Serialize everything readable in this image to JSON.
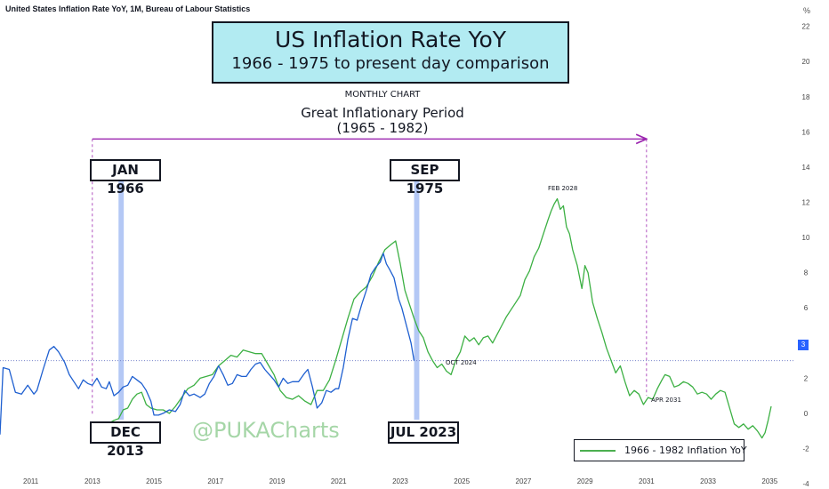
{
  "header": "United States Inflation Rate YoY, 1M, Bureau of Labour Statistics",
  "unit": "%",
  "title_box": {
    "line1": "US Inflation Rate YoY",
    "line2": "1966 - 1975 to present day comparison"
  },
  "monthly_label": "MONTHLY CHART",
  "period_label": {
    "line1": "Great Inflationary Period",
    "line2": "(1965 - 1982)"
  },
  "labels": {
    "jan1966": "JAN 1966",
    "sep1975": "SEP 1975",
    "dec2013": "DEC 2013",
    "jul2023": "JUL 2023",
    "feb2028": "FEB 2028",
    "oct2024": "OCT 2024",
    "apr2031": "APR 2031"
  },
  "watermark": "@PUKACharts",
  "current_value": "3",
  "colors": {
    "us_cpi": "#1e5fd0",
    "historic": "#3cb043",
    "highlight": "#b4c8f5",
    "arrow": "#9c27b0",
    "ref_line": "#7986cb",
    "title_bg": "#b2ebf2"
  },
  "chart_data": {
    "type": "line",
    "xlim": [
      2010.0,
      2035.8
    ],
    "ylim": [
      -4.3,
      23.5
    ],
    "x_ticks": [
      2011,
      2013,
      2015,
      2017,
      2019,
      2021,
      2023,
      2025,
      2027,
      2029,
      2031,
      2033,
      2035
    ],
    "y_ticks": [
      -4,
      -2,
      0,
      2,
      4,
      6,
      8,
      10,
      12,
      14,
      16,
      18,
      20,
      22
    ],
    "reference_line": 3,
    "highlights": [
      [
        2013.85,
        2014.02
      ],
      [
        2023.45,
        2023.62
      ]
    ],
    "period_arrow": {
      "from": 2013.0,
      "to": 2031.0,
      "y": 15.6
    },
    "series": [
      {
        "name": "United States Inflation Rate YoY",
        "points": [
          [
            2010.0,
            -1.2
          ],
          [
            2010.1,
            2.6
          ],
          [
            2010.3,
            2.5
          ],
          [
            2010.5,
            1.2
          ],
          [
            2010.7,
            1.1
          ],
          [
            2010.9,
            1.6
          ],
          [
            2011.1,
            1.1
          ],
          [
            2011.2,
            1.3
          ],
          [
            2011.4,
            2.5
          ],
          [
            2011.6,
            3.6
          ],
          [
            2011.75,
            3.8
          ],
          [
            2011.9,
            3.5
          ],
          [
            2012.1,
            2.9
          ],
          [
            2012.25,
            2.2
          ],
          [
            2012.4,
            1.8
          ],
          [
            2012.55,
            1.4
          ],
          [
            2012.7,
            1.9
          ],
          [
            2012.85,
            1.7
          ],
          [
            2013.0,
            1.6
          ],
          [
            2013.15,
            2.0
          ],
          [
            2013.3,
            1.5
          ],
          [
            2013.45,
            1.4
          ],
          [
            2013.55,
            1.8
          ],
          [
            2013.7,
            1.0
          ],
          [
            2013.85,
            1.2
          ],
          [
            2014.0,
            1.5
          ],
          [
            2014.15,
            1.6
          ],
          [
            2014.3,
            2.1
          ],
          [
            2014.45,
            1.9
          ],
          [
            2014.6,
            1.7
          ],
          [
            2014.75,
            1.3
          ],
          [
            2014.9,
            0.7
          ],
          [
            2015.0,
            -0.1
          ],
          [
            2015.15,
            -0.1
          ],
          [
            2015.3,
            0.0
          ],
          [
            2015.5,
            0.2
          ],
          [
            2015.7,
            0.1
          ],
          [
            2015.85,
            0.5
          ],
          [
            2016.0,
            1.3
          ],
          [
            2016.15,
            1.0
          ],
          [
            2016.3,
            1.1
          ],
          [
            2016.5,
            0.9
          ],
          [
            2016.65,
            1.1
          ],
          [
            2016.8,
            1.7
          ],
          [
            2016.95,
            2.1
          ],
          [
            2017.1,
            2.7
          ],
          [
            2017.25,
            2.2
          ],
          [
            2017.4,
            1.6
          ],
          [
            2017.55,
            1.7
          ],
          [
            2017.7,
            2.2
          ],
          [
            2017.85,
            2.1
          ],
          [
            2018.0,
            2.1
          ],
          [
            2018.15,
            2.5
          ],
          [
            2018.3,
            2.8
          ],
          [
            2018.45,
            2.9
          ],
          [
            2018.6,
            2.5
          ],
          [
            2018.75,
            2.2
          ],
          [
            2018.9,
            1.9
          ],
          [
            2019.05,
            1.5
          ],
          [
            2019.2,
            2.0
          ],
          [
            2019.35,
            1.7
          ],
          [
            2019.5,
            1.8
          ],
          [
            2019.7,
            1.8
          ],
          [
            2019.9,
            2.3
          ],
          [
            2020.0,
            2.5
          ],
          [
            2020.15,
            1.5
          ],
          [
            2020.3,
            0.3
          ],
          [
            2020.45,
            0.6
          ],
          [
            2020.6,
            1.3
          ],
          [
            2020.75,
            1.2
          ],
          [
            2020.9,
            1.4
          ],
          [
            2021.0,
            1.4
          ],
          [
            2021.15,
            2.6
          ],
          [
            2021.3,
            4.2
          ],
          [
            2021.45,
            5.4
          ],
          [
            2021.6,
            5.3
          ],
          [
            2021.75,
            6.2
          ],
          [
            2021.9,
            7.0
          ],
          [
            2022.05,
            7.9
          ],
          [
            2022.2,
            8.3
          ],
          [
            2022.35,
            8.6
          ],
          [
            2022.45,
            9.1
          ],
          [
            2022.55,
            8.5
          ],
          [
            2022.65,
            8.2
          ],
          [
            2022.8,
            7.7
          ],
          [
            2022.95,
            6.5
          ],
          [
            2023.05,
            6.0
          ],
          [
            2023.2,
            5.0
          ],
          [
            2023.35,
            4.0
          ],
          [
            2023.45,
            3.0
          ]
        ]
      },
      {
        "name": "1966 - 1982 Inflation YoY",
        "points": [
          [
            2013.0,
            -1.0
          ],
          [
            2013.2,
            -0.8
          ],
          [
            2013.35,
            -0.9
          ],
          [
            2013.5,
            -0.6
          ],
          [
            2013.7,
            -0.4
          ],
          [
            2013.85,
            -0.3
          ],
          [
            2014.0,
            0.2
          ],
          [
            2014.15,
            0.3
          ],
          [
            2014.3,
            0.8
          ],
          [
            2014.45,
            1.1
          ],
          [
            2014.6,
            1.2
          ],
          [
            2014.75,
            0.5
          ],
          [
            2014.9,
            0.3
          ],
          [
            2015.1,
            0.2
          ],
          [
            2015.3,
            0.2
          ],
          [
            2015.5,
            0.0
          ],
          [
            2015.7,
            0.4
          ],
          [
            2015.9,
            0.9
          ],
          [
            2016.1,
            1.4
          ],
          [
            2016.3,
            1.6
          ],
          [
            2016.5,
            2.0
          ],
          [
            2016.7,
            2.1
          ],
          [
            2016.9,
            2.2
          ],
          [
            2017.1,
            2.7
          ],
          [
            2017.3,
            3.0
          ],
          [
            2017.5,
            3.3
          ],
          [
            2017.7,
            3.2
          ],
          [
            2017.9,
            3.6
          ],
          [
            2018.1,
            3.5
          ],
          [
            2018.3,
            3.4
          ],
          [
            2018.5,
            3.4
          ],
          [
            2018.7,
            2.8
          ],
          [
            2018.9,
            2.2
          ],
          [
            2019.1,
            1.3
          ],
          [
            2019.3,
            0.9
          ],
          [
            2019.5,
            0.8
          ],
          [
            2019.7,
            1.0
          ],
          [
            2019.9,
            0.7
          ],
          [
            2020.1,
            0.5
          ],
          [
            2020.3,
            1.3
          ],
          [
            2020.5,
            1.3
          ],
          [
            2020.7,
            1.9
          ],
          [
            2020.9,
            3.0
          ],
          [
            2021.1,
            4.2
          ],
          [
            2021.3,
            5.4
          ],
          [
            2021.5,
            6.5
          ],
          [
            2021.7,
            6.9
          ],
          [
            2021.9,
            7.2
          ],
          [
            2022.1,
            7.8
          ],
          [
            2022.3,
            8.6
          ],
          [
            2022.5,
            9.3
          ],
          [
            2022.7,
            9.6
          ],
          [
            2022.85,
            9.8
          ],
          [
            2023.0,
            8.5
          ],
          [
            2023.15,
            7.0
          ],
          [
            2023.3,
            6.2
          ],
          [
            2023.45,
            5.4
          ],
          [
            2023.6,
            4.7
          ],
          [
            2023.75,
            4.3
          ],
          [
            2023.9,
            3.5
          ],
          [
            2024.05,
            3.0
          ],
          [
            2024.2,
            2.6
          ],
          [
            2024.35,
            2.8
          ],
          [
            2024.5,
            2.4
          ],
          [
            2024.65,
            2.2
          ],
          [
            2024.8,
            3.0
          ],
          [
            2024.95,
            3.5
          ],
          [
            2025.1,
            4.4
          ],
          [
            2025.25,
            4.1
          ],
          [
            2025.4,
            4.3
          ],
          [
            2025.55,
            3.9
          ],
          [
            2025.7,
            4.3
          ],
          [
            2025.85,
            4.4
          ],
          [
            2026.0,
            4.0
          ],
          [
            2026.15,
            4.5
          ],
          [
            2026.3,
            5.0
          ],
          [
            2026.45,
            5.5
          ],
          [
            2026.6,
            5.9
          ],
          [
            2026.75,
            6.3
          ],
          [
            2026.9,
            6.7
          ],
          [
            2027.05,
            7.6
          ],
          [
            2027.2,
            8.1
          ],
          [
            2027.35,
            8.9
          ],
          [
            2027.5,
            9.4
          ],
          [
            2027.65,
            10.2
          ],
          [
            2027.8,
            11.0
          ],
          [
            2027.9,
            11.5
          ],
          [
            2028.0,
            11.9
          ],
          [
            2028.1,
            12.2
          ],
          [
            2028.2,
            11.6
          ],
          [
            2028.3,
            11.8
          ],
          [
            2028.4,
            10.6
          ],
          [
            2028.5,
            10.2
          ],
          [
            2028.6,
            9.3
          ],
          [
            2028.75,
            8.4
          ],
          [
            2028.9,
            7.1
          ],
          [
            2029.0,
            8.4
          ],
          [
            2029.1,
            8.0
          ],
          [
            2029.25,
            6.3
          ],
          [
            2029.4,
            5.4
          ],
          [
            2029.55,
            4.6
          ],
          [
            2029.7,
            3.7
          ],
          [
            2029.85,
            3.0
          ],
          [
            2030.0,
            2.3
          ],
          [
            2030.15,
            2.7
          ],
          [
            2030.3,
            1.8
          ],
          [
            2030.45,
            1.0
          ],
          [
            2030.6,
            1.3
          ],
          [
            2030.75,
            1.1
          ],
          [
            2030.9,
            0.5
          ],
          [
            2031.05,
            0.9
          ],
          [
            2031.2,
            0.8
          ],
          [
            2031.35,
            1.4
          ],
          [
            2031.5,
            1.9
          ],
          [
            2031.6,
            2.2
          ],
          [
            2031.75,
            2.1
          ],
          [
            2031.9,
            1.5
          ],
          [
            2032.05,
            1.6
          ],
          [
            2032.2,
            1.8
          ],
          [
            2032.35,
            1.7
          ],
          [
            2032.5,
            1.5
          ],
          [
            2032.65,
            1.1
          ],
          [
            2032.8,
            1.2
          ],
          [
            2032.95,
            1.1
          ],
          [
            2033.1,
            0.8
          ],
          [
            2033.25,
            1.1
          ],
          [
            2033.4,
            1.3
          ],
          [
            2033.55,
            1.2
          ],
          [
            2033.7,
            0.3
          ],
          [
            2033.85,
            -0.6
          ],
          [
            2034.0,
            -0.8
          ],
          [
            2034.15,
            -0.6
          ],
          [
            2034.3,
            -0.9
          ],
          [
            2034.45,
            -0.7
          ],
          [
            2034.6,
            -1.0
          ],
          [
            2034.75,
            -1.4
          ],
          [
            2034.85,
            -1.1
          ],
          [
            2034.95,
            -0.4
          ],
          [
            2035.05,
            0.4
          ]
        ]
      }
    ]
  }
}
